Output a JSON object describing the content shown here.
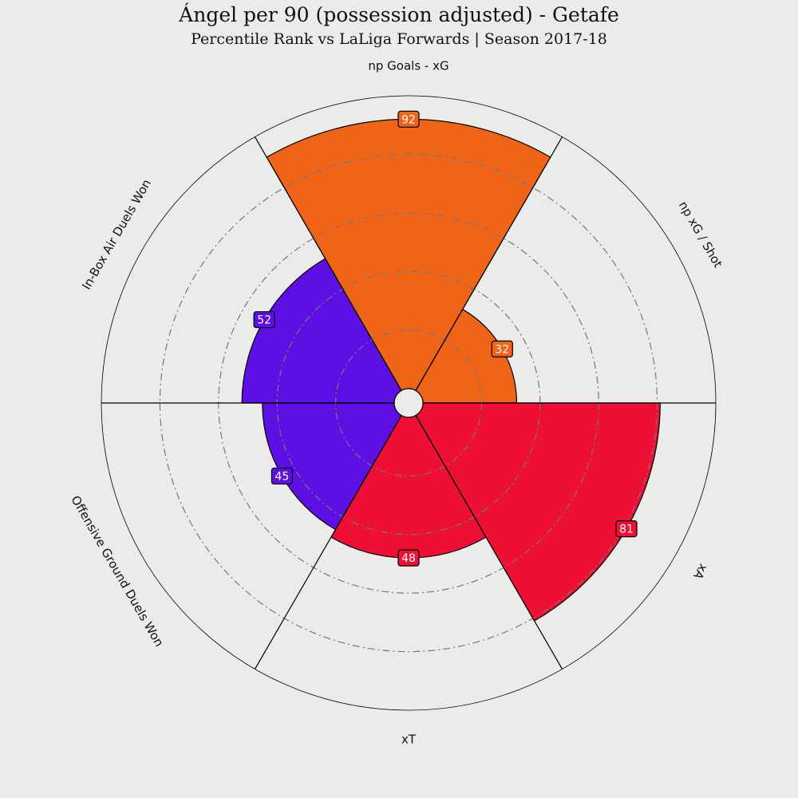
{
  "title": "Ángel per 90 (possession adjusted) - Getafe",
  "subtitle": "Percentile Rank vs LaLiga Forwards | Season 2017-18",
  "chart_data": {
    "type": "bar",
    "polar": true,
    "categories": [
      "np Goals - xG",
      "np xG / Shot",
      "xA",
      "xT",
      "Offensive Ground Duels Won",
      "In-Box Air Duels Won"
    ],
    "values": [
      92,
      32,
      81,
      48,
      45,
      52
    ],
    "colors": [
      "#f06418",
      "#f06418",
      "#ee1034",
      "#ee1034",
      "#5e0fe3",
      "#5e0fe3"
    ],
    "ylim": [
      0,
      100
    ],
    "grid": true
  }
}
